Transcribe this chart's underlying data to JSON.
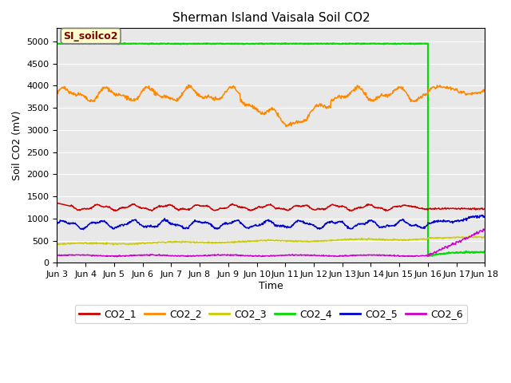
{
  "title": "Sherman Island Vaisala Soil CO2",
  "ylabel": "Soil CO2 (mV)",
  "xlabel": "Time",
  "legend_label": "SI_soilco2",
  "ylim": [
    0,
    5300
  ],
  "yticks": [
    0,
    500,
    1000,
    1500,
    2000,
    2500,
    3000,
    3500,
    4000,
    4500,
    5000
  ],
  "xlim": [
    3,
    18
  ],
  "transition_day": 16.0,
  "colors": {
    "CO2_1": "#cc0000",
    "CO2_2": "#ff8800",
    "CO2_3": "#cccc00",
    "CO2_4": "#00dd00",
    "CO2_5": "#0000cc",
    "CO2_6": "#cc00cc"
  },
  "background_color": "#e8e8e8",
  "legend_box_color": "#ffffcc",
  "legend_text_color": "#800000",
  "legend_border_color": "#808080",
  "figsize": [
    6.4,
    4.8
  ],
  "dpi": 100
}
